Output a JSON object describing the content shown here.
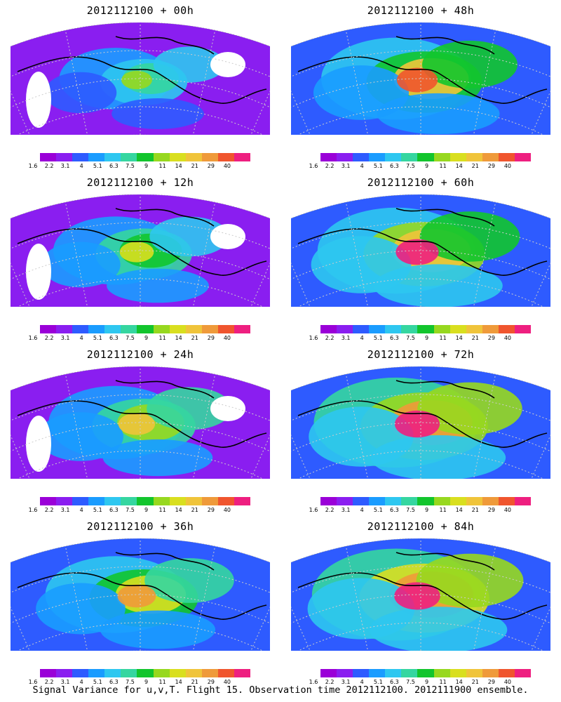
{
  "panels": [
    {
      "title": "2012112100 + 00h",
      "intensity": 0.22
    },
    {
      "title": "2012112100 + 48h",
      "intensity": 0.62
    },
    {
      "title": "2012112100 + 12h",
      "intensity": 0.35
    },
    {
      "title": "2012112100 + 60h",
      "intensity": 0.7
    },
    {
      "title": "2012112100 + 24h",
      "intensity": 0.45
    },
    {
      "title": "2012112100 + 72h",
      "intensity": 0.78
    },
    {
      "title": "2012112100 + 36h",
      "intensity": 0.52
    },
    {
      "title": "2012112100 + 84h",
      "intensity": 0.82
    }
  ],
  "colorbar": {
    "labels": [
      "1.6",
      "2.2",
      "3.1",
      "4",
      "5.1",
      "6.3",
      "7.5",
      "9",
      "11",
      "14",
      "21",
      "29",
      "40"
    ],
    "colors": [
      "#9a00d8",
      "#8a1ef0",
      "#2e5bff",
      "#1a9cff",
      "#2ec7f0",
      "#35d6a0",
      "#12c52d",
      "#97d81f",
      "#d9df1f",
      "#f0c43a",
      "#ef9a3a",
      "#f0552e",
      "#ee1f80"
    ]
  },
  "footer": "Signal Variance for u,v,T. Flight 15. Observation time 2012112100. 2012111900 ensemble."
}
